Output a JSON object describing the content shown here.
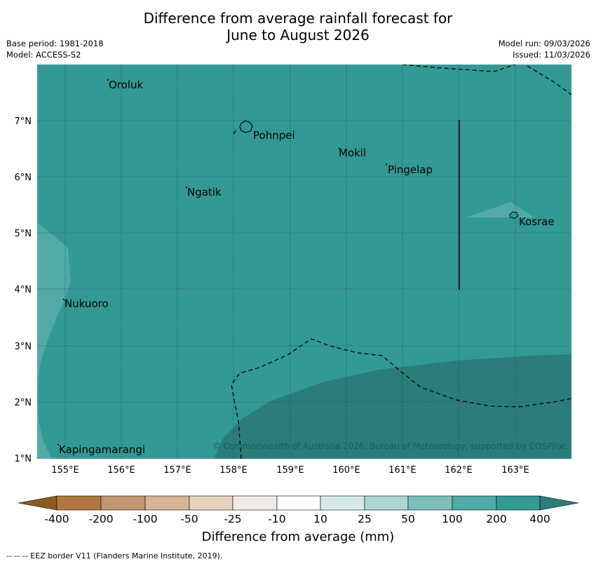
{
  "header": {
    "title_line1": "Difference from average rainfall forecast for",
    "title_line2": "June to August 2026",
    "base_period": "Base period: 1981-2018",
    "model": "Model: ACCESS-S2",
    "model_run": "Model run: 09/03/2026",
    "issued": "Issued: 11/03/2026"
  },
  "map": {
    "lat_labels": [
      "1°N",
      "2°N",
      "3°N",
      "4°N",
      "5°N",
      "6°N",
      "7°N"
    ],
    "lon_labels": [
      "155°E",
      "156°E",
      "157°E",
      "158°E",
      "159°E",
      "160°E",
      "161°E",
      "162°E",
      "163°E"
    ],
    "places": {
      "oroluk": "Oroluk",
      "pohnpei": "Pohnpei",
      "mokil": "Mokil",
      "pingelap": "Pingelap",
      "ngatik": "Ngatik",
      "kosrae": "Kosrae",
      "nukuoro": "Nukuoro",
      "kapingamarangi": "Kapingamarangi"
    },
    "copyright": "© Commonwealth of Australia 2026, Bureau of Meteorology, supported by COSPPac"
  },
  "colorbar": {
    "labels": [
      "-400",
      "-200",
      "-100",
      "-50",
      "-25",
      "-10",
      "10",
      "25",
      "50",
      "100",
      "200",
      "400"
    ],
    "colors": {
      "lt_n400": "#8c5a20",
      "n400_n200": "#b07840",
      "n200_n100": "#c39670",
      "n100_n50": "#d6b496",
      "n50_n25": "#e6d2c0",
      "n25_n10": "#efebe8",
      "n10_p10": "#ffffff",
      "p10_p25": "#d6eae8",
      "p25_p50": "#aad6d4",
      "p50_p100": "#7dbfbb",
      "p100_p200": "#52aaa6",
      "p200_p400": "#339995",
      "gt_p400": "#2b7d7a"
    },
    "title": "Difference from average (mm)"
  },
  "footnote": "--  --  -- EEZ border V11 (Flanders Marine Institute, 2019)."
}
